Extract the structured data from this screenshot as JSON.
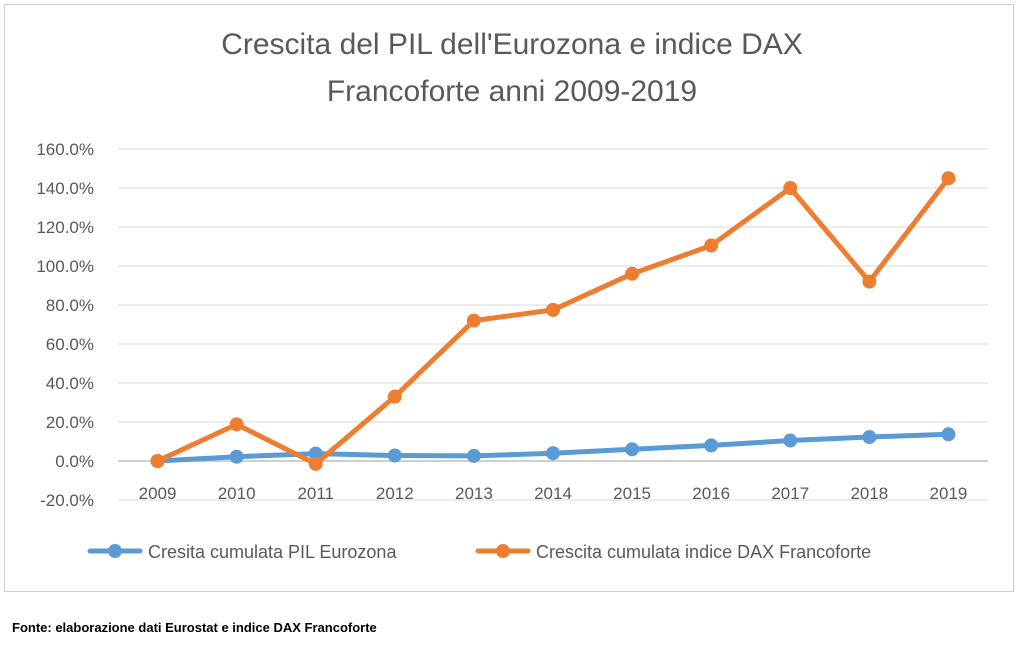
{
  "chart_data": {
    "type": "line",
    "title_lines": [
      "Crescita del PIL dell'Eurozona e indice DAX",
      "Francoforte anni 2009-2019"
    ],
    "xlabel": "",
    "ylabel": "",
    "categories": [
      "2009",
      "2010",
      "2011",
      "2012",
      "2013",
      "2014",
      "2015",
      "2016",
      "2017",
      "2018",
      "2019"
    ],
    "y_ticks": [
      "-20.0%",
      "0.0%",
      "20.0%",
      "40.0%",
      "60.0%",
      "80.0%",
      "100.0%",
      "120.0%",
      "140.0%",
      "160.0%"
    ],
    "ylim": [
      -20,
      160
    ],
    "grid": true,
    "legend_position": "bottom",
    "series": [
      {
        "name": "Cresita cumulata PIL Eurozona",
        "color": "#5b9bd5",
        "values": [
          0.0,
          2.2,
          3.8,
          2.8,
          2.6,
          4.0,
          6.0,
          8.0,
          10.5,
          12.3,
          13.7
        ]
      },
      {
        "name": "Crescita cumulata indice DAX Francoforte",
        "color": "#ed7d31",
        "values": [
          0.0,
          18.8,
          -1.5,
          33.0,
          72.0,
          77.5,
          96.0,
          110.5,
          140.0,
          92.0,
          145.0
        ]
      }
    ]
  },
  "source_note": "Fonte: elaborazione dati Eurostat e indice DAX Francoforte"
}
